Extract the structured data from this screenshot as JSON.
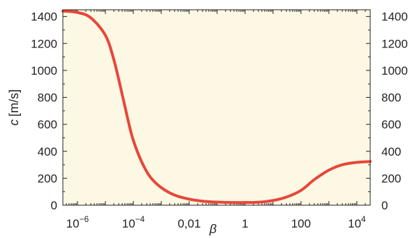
{
  "chart_data": {
    "type": "line",
    "xscale": "log",
    "xlabel": "β",
    "ylabel": "c [m/s]",
    "ylabel_symbol": "c",
    "ylabel_unit": "[m/s]",
    "xlim": [
      3e-07,
      30000
    ],
    "ylim": [
      0,
      1450
    ],
    "x_ticks": [
      {
        "value": 1e-06,
        "base": "10",
        "exp": "−6"
      },
      {
        "value": 0.0001,
        "base": "10",
        "exp": "−4"
      },
      {
        "value": 0.01,
        "base": "0,01",
        "exp": ""
      },
      {
        "value": 1,
        "base": "1",
        "exp": ""
      },
      {
        "value": 100,
        "base": "100",
        "exp": ""
      },
      {
        "value": 10000,
        "base": "10",
        "exp": "4"
      }
    ],
    "y_ticks": [
      0,
      200,
      400,
      600,
      800,
      1000,
      1200,
      1400
    ],
    "y_ticks_right": [
      0,
      200,
      400,
      600,
      800,
      1000,
      1200,
      1400
    ],
    "plot_background": "#fdf8e3",
    "series": [
      {
        "color": "#e8463a",
        "x": [
          3e-07,
          1e-06,
          3e-06,
          1e-05,
          2e-05,
          4e-05,
          7e-05,
          0.0001,
          0.0002,
          0.0004,
          0.001,
          0.003,
          0.01,
          0.03,
          0.1,
          0.3,
          1,
          3,
          10,
          30,
          100,
          300,
          1000,
          3000,
          10000,
          30000
        ],
        "y": [
          1440,
          1430,
          1390,
          1260,
          1080,
          820,
          600,
          480,
          320,
          210,
          130,
          75,
          45,
          30,
          23,
          20,
          20,
          22,
          35,
          60,
          110,
          190,
          260,
          300,
          318,
          324
        ]
      }
    ]
  }
}
